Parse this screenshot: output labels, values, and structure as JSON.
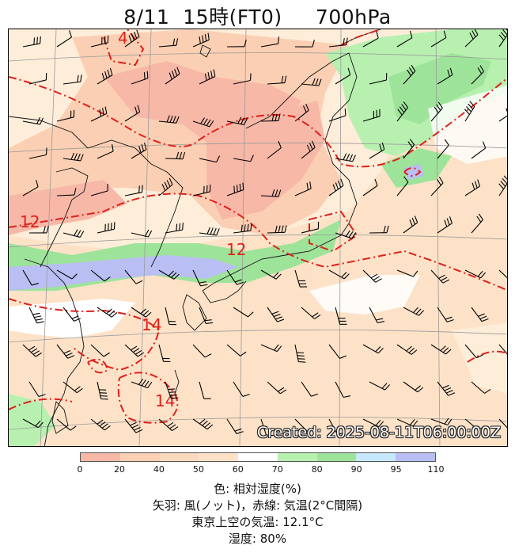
{
  "header": {
    "title": "8/11  15時(FT0)     700hPa"
  },
  "map": {
    "created_stamp": "Created: 2025-08-11T06:00:00Z",
    "isotherm_labels": [
      "4",
      "12",
      "12",
      "14",
      "14"
    ],
    "isotherm_color": "#e0201a",
    "humidity_colors": [
      "#f7b8a8",
      "#fbcfb3",
      "#fde2c8",
      "#fdedd9",
      "#ffffff",
      "#b8f0b0",
      "#9ee39a",
      "#c7e9ff",
      "#b9bff2"
    ]
  },
  "colorbar": {
    "ticks": [
      "0",
      "20",
      "40",
      "50",
      "60",
      "70",
      "80",
      "90",
      "95",
      "110"
    ]
  },
  "legend": {
    "line1": "色: 相対湿度(%)",
    "line2": "矢羽: 風(ノット)，赤線: 気温(2°C間隔)",
    "line3": "東京上空の気温: 12.1°C",
    "line4": "湿度: 80%"
  }
}
